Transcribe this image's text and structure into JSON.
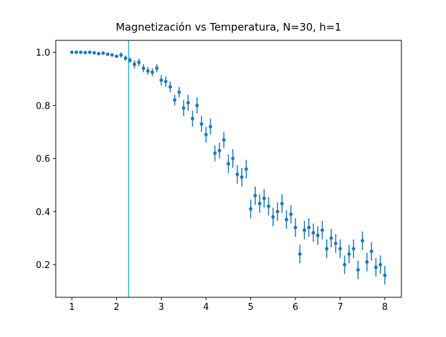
{
  "chart_data": {
    "type": "errorbar",
    "title": "Magnetización vs Temperatura, N=30, h=1",
    "x": [
      1.0,
      1.1,
      1.2,
      1.3,
      1.4,
      1.5,
      1.6,
      1.7,
      1.8,
      1.9,
      2.0,
      2.1,
      2.2,
      2.3,
      2.4,
      2.5,
      2.6,
      2.7,
      2.8,
      2.9,
      3.0,
      3.1,
      3.2,
      3.3,
      3.4,
      3.5,
      3.6,
      3.7,
      3.8,
      3.9,
      4.0,
      4.1,
      4.2,
      4.3,
      4.4,
      4.5,
      4.6,
      4.7,
      4.8,
      4.9,
      5.0,
      5.1,
      5.2,
      5.3,
      5.4,
      5.5,
      5.6,
      5.7,
      5.8,
      5.9,
      6.0,
      6.1,
      6.2,
      6.3,
      6.4,
      6.5,
      6.6,
      6.7,
      6.8,
      6.9,
      7.0,
      7.1,
      7.2,
      7.3,
      7.4,
      7.5,
      7.6,
      7.7,
      7.8,
      7.9,
      8.0
    ],
    "series": [
      {
        "color": "#1f77b4",
        "values": [
          1.0,
          1.0,
          1.0,
          0.999,
          1.0,
          0.998,
          0.995,
          0.997,
          0.993,
          0.99,
          0.985,
          0.99,
          0.978,
          0.97,
          0.955,
          0.962,
          0.94,
          0.93,
          0.925,
          0.94,
          0.895,
          0.89,
          0.87,
          0.82,
          0.85,
          0.79,
          0.81,
          0.75,
          0.8,
          0.73,
          0.69,
          0.72,
          0.62,
          0.63,
          0.67,
          0.58,
          0.6,
          0.54,
          0.53,
          0.56,
          0.41,
          0.46,
          0.43,
          0.45,
          0.42,
          0.38,
          0.4,
          0.43,
          0.37,
          0.39,
          0.34,
          0.24,
          0.33,
          0.34,
          0.32,
          0.31,
          0.33,
          0.26,
          0.3,
          0.28,
          0.26,
          0.2,
          0.24,
          0.26,
          0.18,
          0.29,
          0.21,
          0.25,
          0.19,
          0.2,
          0.16
        ],
        "errors": [
          0.002,
          0.002,
          0.002,
          0.002,
          0.002,
          0.002,
          0.002,
          0.005,
          0.005,
          0.005,
          0.005,
          0.01,
          0.01,
          0.01,
          0.015,
          0.015,
          0.015,
          0.015,
          0.015,
          0.015,
          0.02,
          0.02,
          0.02,
          0.02,
          0.02,
          0.03,
          0.03,
          0.03,
          0.03,
          0.03,
          0.03,
          0.03,
          0.03,
          0.03,
          0.03,
          0.035,
          0.035,
          0.035,
          0.035,
          0.035,
          0.035,
          0.035,
          0.035,
          0.035,
          0.035,
          0.035,
          0.035,
          0.035,
          0.035,
          0.035,
          0.035,
          0.035,
          0.035,
          0.035,
          0.035,
          0.035,
          0.035,
          0.035,
          0.035,
          0.035,
          0.035,
          0.035,
          0.035,
          0.035,
          0.035,
          0.035,
          0.035,
          0.035,
          0.035,
          0.035,
          0.035
        ]
      }
    ],
    "vlines": [
      {
        "x": 2.269,
        "color": "#17becf"
      }
    ],
    "xlim": [
      0.64,
      8.37
    ],
    "ylim": [
      0.077,
      1.045
    ],
    "xticks": [
      1,
      2,
      3,
      4,
      5,
      6,
      7,
      8
    ],
    "yticks": [
      0.2,
      0.4,
      0.6,
      0.8,
      {
        "value": 1,
        "label": "1.0"
      }
    ]
  }
}
